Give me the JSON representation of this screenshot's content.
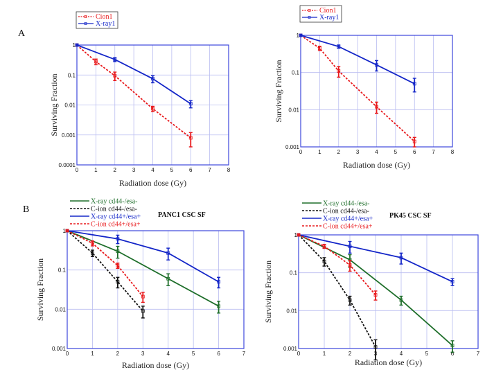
{
  "panel_labels": [
    "A",
    "B"
  ],
  "chart_data": [
    {
      "type": "line",
      "panel": "A-left",
      "title": "",
      "xlabel": "Radiation dose (Gy)",
      "ylabel": "Surviving Fraction",
      "xlim": [
        0,
        8
      ],
      "xticks": [
        "0",
        "1",
        "2",
        "3",
        "4",
        "5",
        "6",
        "7",
        "8"
      ],
      "ylim": [
        0.0001,
        1
      ],
      "yscale": "log",
      "yticks": [
        "0.0001",
        "0.001",
        "0.01",
        "0.1",
        "1"
      ],
      "grid": true,
      "legend_placement": "top-left, boxed",
      "series": [
        {
          "name": "Cion1",
          "color": "#e8191c",
          "dash": true,
          "x": [
            0,
            1,
            2,
            4,
            6
          ],
          "y": [
            1,
            0.28,
            0.095,
            0.0075,
            0.0008
          ],
          "err": [
            0.05,
            0.06,
            0.03,
            0.0015,
            0.0004
          ]
        },
        {
          "name": "X-ray1",
          "color": "#1426c8",
          "dash": false,
          "x": [
            0,
            2,
            4,
            6
          ],
          "y": [
            1,
            0.33,
            0.075,
            0.011
          ],
          "err": [
            0.05,
            0.05,
            0.02,
            0.003
          ]
        }
      ]
    },
    {
      "type": "line",
      "panel": "A-right",
      "title": "",
      "xlabel": "Radiation dose (Gy)",
      "ylabel": "Surviving Fraction",
      "xlim": [
        0,
        8
      ],
      "xticks": [
        "0",
        "1",
        "2",
        "3",
        "4",
        "5",
        "6",
        "7",
        "8"
      ],
      "ylim": [
        0.001,
        1
      ],
      "yscale": "log",
      "yticks": [
        "0.001",
        "0.01",
        "0.1",
        "1"
      ],
      "grid": true,
      "legend_placement": "top-left, boxed",
      "series": [
        {
          "name": "Cion1",
          "color": "#e8191c",
          "dash": true,
          "x": [
            0,
            1,
            2,
            4,
            6
          ],
          "y": [
            1,
            0.45,
            0.11,
            0.012,
            0.0014
          ],
          "err": [
            0.04,
            0.06,
            0.035,
            0.004,
            0.0004
          ]
        },
        {
          "name": "X-ray1",
          "color": "#1426c8",
          "dash": false,
          "x": [
            0,
            2,
            4,
            6
          ],
          "y": [
            1,
            0.5,
            0.16,
            0.05
          ],
          "err": [
            0.04,
            0.05,
            0.05,
            0.02
          ]
        }
      ]
    },
    {
      "type": "line",
      "panel": "B-left",
      "title": "PANC1 CSC  SF",
      "xlabel": "Radiation dose (Gy)",
      "ylabel": "Surviving Fraction",
      "xlim": [
        0,
        7
      ],
      "xticks": [
        "0",
        "1",
        "2",
        "3",
        "4",
        "5",
        "6",
        "7"
      ],
      "ylim": [
        0.001,
        1
      ],
      "yscale": "log",
      "yticks": [
        "0.001",
        "0.01",
        "0.1",
        "1"
      ],
      "grid": true,
      "legend_placement": "top-left, outside",
      "series": [
        {
          "name": "X-ray  cd44-/esa-",
          "color": "#1e6e2a",
          "dash": false,
          "x": [
            0,
            2,
            4,
            6
          ],
          "y": [
            1,
            0.3,
            0.06,
            0.012
          ],
          "err": [
            0.04,
            0.1,
            0.02,
            0.004
          ]
        },
        {
          "name": "C-ion  cd44-/esa-",
          "color": "#111111",
          "dash": true,
          "x": [
            0,
            1,
            2,
            3
          ],
          "y": [
            1,
            0.27,
            0.05,
            0.009
          ],
          "err": [
            0.04,
            0.05,
            0.015,
            0.003
          ]
        },
        {
          "name": "X-ray cd44+/esa+",
          "color": "#1426c8",
          "dash": false,
          "x": [
            0,
            2,
            4,
            6
          ],
          "y": [
            1,
            0.62,
            0.27,
            0.05
          ],
          "err": [
            0.04,
            0.15,
            0.09,
            0.015
          ]
        },
        {
          "name": "C-ion cd44+/esa+",
          "color": "#e8191c",
          "dash": true,
          "x": [
            0,
            1,
            2,
            3
          ],
          "y": [
            1,
            0.48,
            0.13,
            0.021
          ],
          "err": [
            0.04,
            0.07,
            0.02,
            0.006
          ]
        }
      ]
    },
    {
      "type": "line",
      "panel": "B-right",
      "title": "PK45 CSC SF",
      "xlabel": "Radiation dose (Gy)",
      "ylabel": "Surviving Fraction",
      "xlim": [
        0,
        7
      ],
      "xticks": [
        "0",
        "1",
        "2",
        "3",
        "4",
        "5",
        "6",
        "7"
      ],
      "ylim": [
        0.001,
        1
      ],
      "yscale": "log",
      "yticks": [
        "0.001",
        "0.01",
        "0.1",
        "1"
      ],
      "grid": true,
      "legend_placement": "top-left, outside",
      "series": [
        {
          "name": "X-ray  cd44-/esa-",
          "color": "#1e6e2a",
          "dash": false,
          "x": [
            0,
            2,
            4,
            6
          ],
          "y": [
            1,
            0.22,
            0.019,
            0.0012
          ],
          "err": [
            0.04,
            0.08,
            0.005,
            0.0004
          ]
        },
        {
          "name": "C-ion  cd44-/esa-",
          "color": "#111111",
          "dash": true,
          "x": [
            0,
            1,
            2,
            3
          ],
          "y": [
            1,
            0.2,
            0.019,
            0.0011
          ],
          "err": [
            0.04,
            0.05,
            0.005,
            0.0006
          ]
        },
        {
          "name": "X-ray cd44+/esa+",
          "color": "#1426c8",
          "dash": false,
          "x": [
            0,
            2,
            4,
            6
          ],
          "y": [
            1,
            0.5,
            0.25,
            0.058
          ],
          "err": [
            0.04,
            0.17,
            0.08,
            0.012
          ]
        },
        {
          "name": "C-ion cd44+/esa+",
          "color": "#e8191c",
          "dash": true,
          "x": [
            0,
            1,
            2,
            3
          ],
          "y": [
            1,
            0.5,
            0.16,
            0.026
          ],
          "err": [
            0.04,
            0.06,
            0.05,
            0.007
          ]
        }
      ]
    }
  ]
}
